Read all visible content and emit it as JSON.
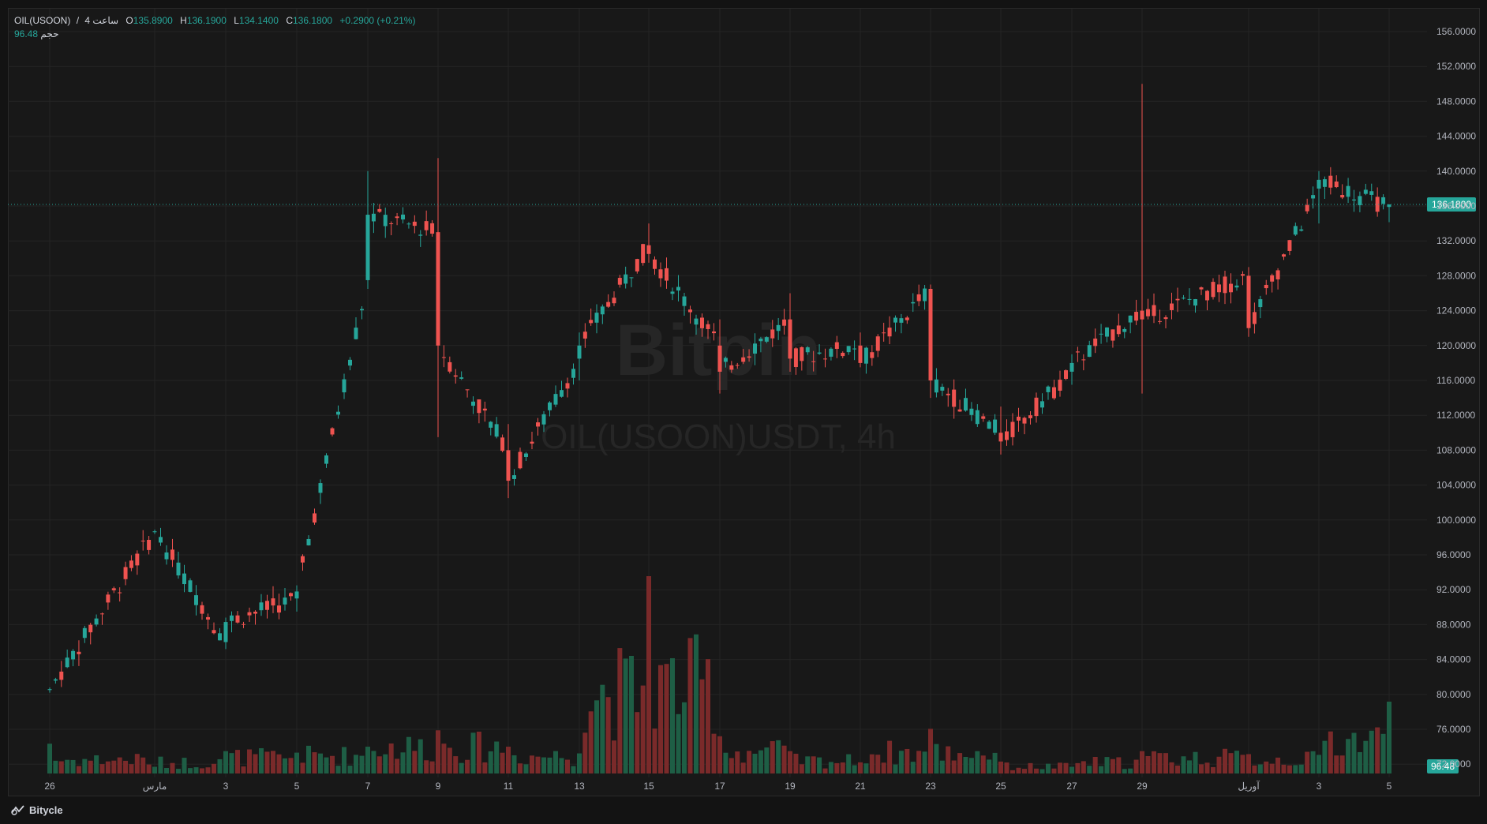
{
  "legend": {
    "symbol": "OIL(USOON)",
    "slash": "/",
    "interval": "4 ساعت",
    "o_label": "O",
    "o_value": "135.8900",
    "h_label": "H",
    "h_value": "136.1900",
    "l_label": "L",
    "l_value": "134.1400",
    "c_label": "C",
    "c_value": "136.1800",
    "change": "+0.2900 (+0.21%)",
    "volume_label": "حجم",
    "volume_value": "96.48"
  },
  "watermark": {
    "brand": "Bitpin",
    "caption": "OIL(USOON)USDT, 4h"
  },
  "price_axis": {
    "ticks": [
      "156.0000",
      "152.0000",
      "148.0000",
      "144.0000",
      "140.0000",
      "136.0000",
      "132.0000",
      "128.0000",
      "124.0000",
      "120.0000",
      "116.0000",
      "112.0000",
      "108.0000",
      "104.0000",
      "100.0000",
      "96.0000",
      "92.0000",
      "88.0000",
      "84.0000",
      "80.0000",
      "76.0000",
      "72.0000"
    ],
    "last_price": "136.1800",
    "last_volume": "96.48"
  },
  "time_axis": {
    "ticks": [
      "26",
      "مارس",
      "3",
      "5",
      "7",
      "9",
      "11",
      "13",
      "15",
      "17",
      "19",
      "21",
      "23",
      "25",
      "27",
      "29",
      "آوریل",
      "3",
      "5"
    ]
  },
  "footer": {
    "brand": "Bitycle"
  },
  "colors": {
    "up": "#26a69a",
    "down": "#ef5350",
    "up_volume": "#1e5e45",
    "down_volume": "#7a2a2a",
    "background": "#181818",
    "grid": "#242424",
    "text": "#d1d4dc"
  },
  "chart_data": {
    "type": "candlestick",
    "interval": "4h",
    "y_range": [
      70,
      158
    ],
    "price_ticks": [
      156,
      152,
      148,
      144,
      140,
      136,
      132,
      128,
      124,
      120,
      116,
      112,
      108,
      104,
      100,
      96,
      92,
      88,
      84,
      80,
      76,
      72
    ],
    "key_points": [
      {
        "label": "26",
        "t": [
          80.5,
          80.8,
          80.2,
          80.6,
          40
        ]
      },
      {
        "label": "مارس",
        "t": [
          98.6,
          98.9,
          98.4,
          98.7,
          9
        ]
      },
      {
        "label": "3",
        "t": [
          86.0,
          88.8,
          85.2,
          88.3,
          30
        ]
      },
      {
        "label": "5",
        "t": [
          91.0,
          92.5,
          89.5,
          91.8,
          28
        ]
      },
      {
        "label": "7",
        "t": [
          127.5,
          140.0,
          126.5,
          135.0,
          36
        ]
      },
      {
        "label": "9",
        "t": [
          133.0,
          141.5,
          109.5,
          120.0,
          58
        ]
      },
      {
        "label": "11",
        "t": [
          108.0,
          111.0,
          102.5,
          104.5,
          36
        ]
      },
      {
        "label": "13",
        "t": [
          118.5,
          121.5,
          116.0,
          120.0,
          27
        ]
      },
      {
        "label": "15",
        "t": [
          131.5,
          134.0,
          129.5,
          130.5,
          265
        ]
      },
      {
        "label": "17",
        "t": [
          120.0,
          123.0,
          114.5,
          117.0,
          50
        ]
      },
      {
        "label": "19",
        "t": [
          123.0,
          126.0,
          117.0,
          118.5,
          30
        ]
      },
      {
        "label": "21",
        "t": [
          120.0,
          121.5,
          117.5,
          118.0,
          15
        ]
      },
      {
        "label": "23",
        "t": [
          126.5,
          127.0,
          114.0,
          116.0,
          60
        ]
      },
      {
        "label": "25",
        "t": [
          110.0,
          113.0,
          107.5,
          109.0,
          16
        ]
      },
      {
        "label": "27",
        "t": [
          117.0,
          119.0,
          115.5,
          118.0,
          9
        ]
      },
      {
        "label": "29",
        "t": [
          124.0,
          150.0,
          114.5,
          123.0,
          30
        ]
      },
      {
        "label": "آوریل",
        "t": [
          128.0,
          129.0,
          121.0,
          122.0,
          26
        ]
      },
      {
        "label": "3",
        "t": [
          138.0,
          140.0,
          134.0,
          139.0,
          25
        ]
      },
      {
        "label": "5",
        "t": [
          135.89,
          136.19,
          134.14,
          136.18,
          96.48
        ]
      }
    ]
  }
}
